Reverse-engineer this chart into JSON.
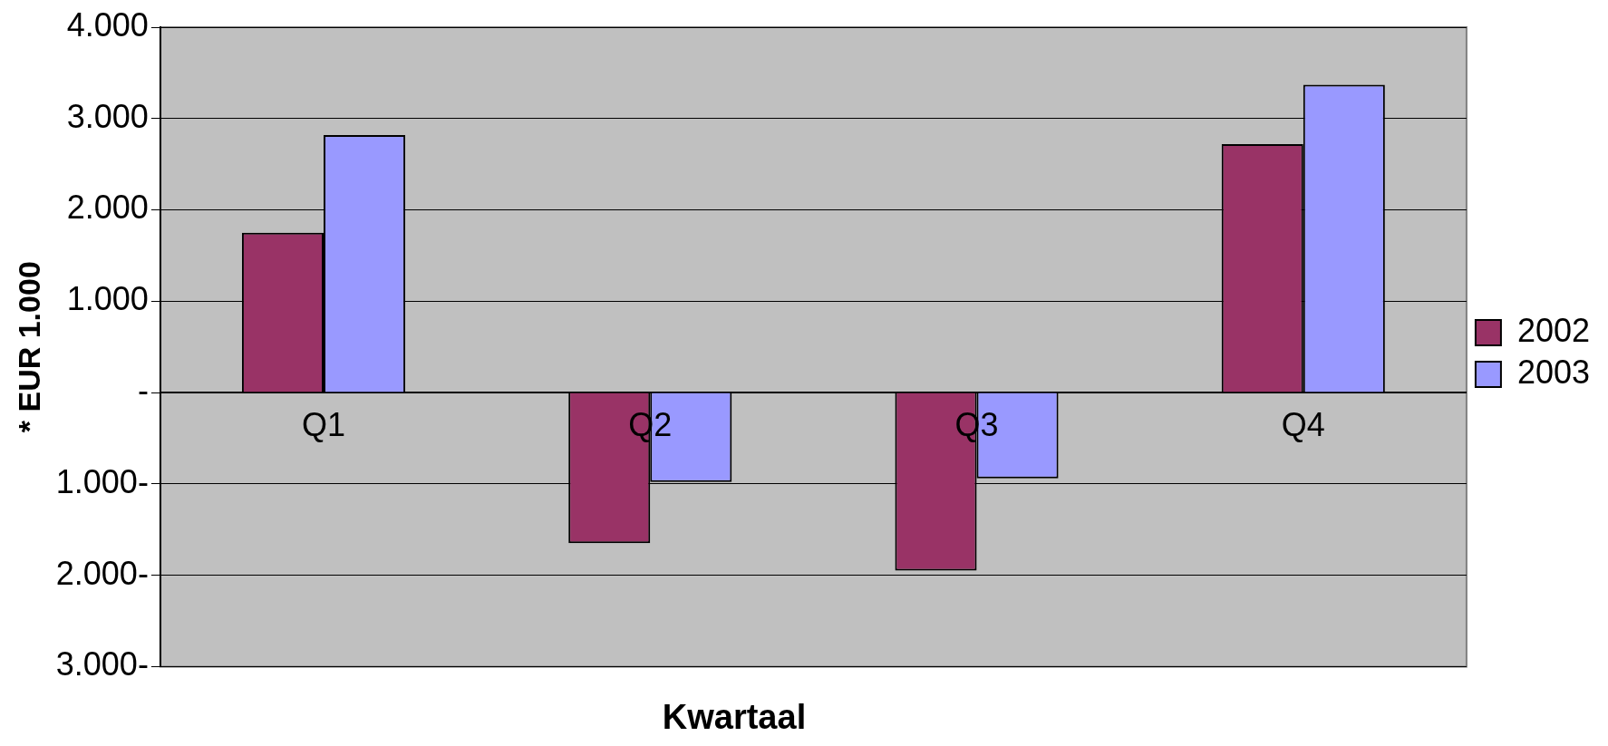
{
  "chart_data": {
    "type": "bar",
    "xlabel": "Kwartaal",
    "ylabel": "* EUR 1.000",
    "categories": [
      "Q1",
      "Q2",
      "Q3",
      "Q4"
    ],
    "series": [
      {
        "name": "2002",
        "color": "#993366",
        "values": [
          1750,
          -1650,
          -1950,
          2720
        ]
      },
      {
        "name": "2003",
        "color": "#9999ff",
        "values": [
          2820,
          -980,
          -940,
          3370
        ]
      }
    ],
    "ylim": [
      -3000,
      4000
    ],
    "yticks": [
      {
        "value": 4000,
        "label": "4.000"
      },
      {
        "value": 3000,
        "label": "3.000"
      },
      {
        "value": 2000,
        "label": "2.000"
      },
      {
        "value": 1000,
        "label": "1.000"
      },
      {
        "value": 0,
        "label": "-"
      },
      {
        "value": -1000,
        "label": "1.000-"
      },
      {
        "value": -2000,
        "label": "2.000-"
      },
      {
        "value": -3000,
        "label": "3.000-"
      }
    ],
    "grid": "y",
    "legend": "right"
  }
}
